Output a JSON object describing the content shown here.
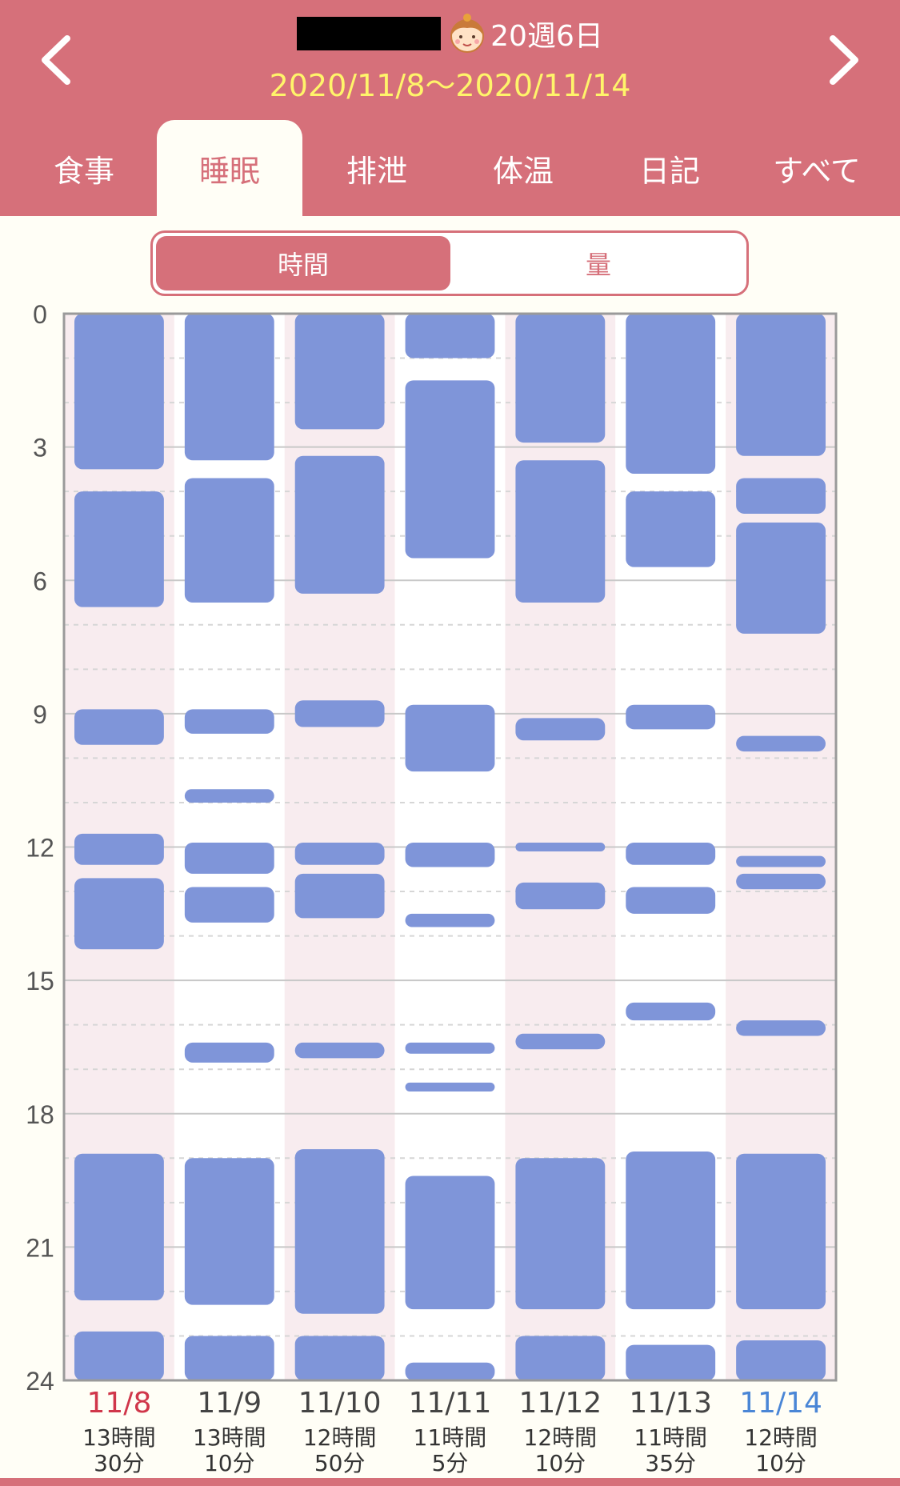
{
  "header": {
    "week_label": "20週6日",
    "date_range": "2020/11/8〜2020/11/14",
    "prev_icon": "chevron-left-icon",
    "next_icon": "chevron-right-icon",
    "avatar_icon": "baby-face-icon",
    "bg_color": "#d6707a"
  },
  "tabs": [
    {
      "label": "食事",
      "active": false
    },
    {
      "label": "睡眠",
      "active": true
    },
    {
      "label": "排泄",
      "active": false
    },
    {
      "label": "体温",
      "active": false
    },
    {
      "label": "日記",
      "active": false
    },
    {
      "label": "すべて",
      "active": false
    }
  ],
  "segment": {
    "time_label": "時間",
    "amount_label": "量",
    "selected": "time"
  },
  "chart_data": {
    "type": "timeline",
    "y_ticks": [
      "0",
      "3",
      "6",
      "9",
      "12",
      "15",
      "18",
      "21",
      "24"
    ],
    "ylim": [
      0,
      24
    ],
    "bar_color": "#7f95d9",
    "days": [
      {
        "date": "11/8",
        "color": "#d0364a",
        "total_line1": "13時間",
        "total_line2": "30分",
        "sleeps": [
          [
            0,
            3.5
          ],
          [
            4,
            6.6
          ],
          [
            8.9,
            9.7
          ],
          [
            11.7,
            12.4
          ],
          [
            12.7,
            14.3
          ],
          [
            18.9,
            22.2
          ],
          [
            22.9,
            24
          ]
        ]
      },
      {
        "date": "11/9",
        "color": "#444444",
        "total_line1": "13時間",
        "total_line2": "10分",
        "sleeps": [
          [
            0,
            3.3
          ],
          [
            3.7,
            6.5
          ],
          [
            8.9,
            9.45
          ],
          [
            10.7,
            11
          ],
          [
            11.9,
            12.6
          ],
          [
            12.9,
            13.7
          ],
          [
            16.4,
            16.85
          ],
          [
            19,
            22.3
          ],
          [
            23,
            24
          ]
        ]
      },
      {
        "date": "11/10",
        "color": "#444444",
        "total_line1": "12時間",
        "total_line2": "50分",
        "sleeps": [
          [
            0,
            2.6
          ],
          [
            3.2,
            6.3
          ],
          [
            8.7,
            9.3
          ],
          [
            11.9,
            12.4
          ],
          [
            12.6,
            13.6
          ],
          [
            16.4,
            16.75
          ],
          [
            18.8,
            22.5
          ],
          [
            23,
            24
          ]
        ]
      },
      {
        "date": "11/11",
        "color": "#444444",
        "total_line1": "11時間",
        "total_line2": "5分",
        "sleeps": [
          [
            0,
            1
          ],
          [
            1.5,
            5.5
          ],
          [
            8.8,
            10.3
          ],
          [
            11.9,
            12.45
          ],
          [
            13.5,
            13.8
          ],
          [
            16.4,
            16.65
          ],
          [
            17.3,
            17.5
          ],
          [
            19.4,
            22.4
          ],
          [
            23.6,
            24
          ]
        ]
      },
      {
        "date": "11/12",
        "color": "#444444",
        "total_line1": "12時間",
        "total_line2": "10分",
        "sleeps": [
          [
            0,
            2.9
          ],
          [
            3.3,
            6.5
          ],
          [
            9.1,
            9.6
          ],
          [
            11.9,
            12.1
          ],
          [
            12.8,
            13.4
          ],
          [
            16.2,
            16.55
          ],
          [
            19,
            22.4
          ],
          [
            23,
            24
          ]
        ]
      },
      {
        "date": "11/13",
        "color": "#444444",
        "total_line1": "11時間",
        "total_line2": "35分",
        "sleeps": [
          [
            0,
            3.6
          ],
          [
            4,
            5.7
          ],
          [
            8.8,
            9.35
          ],
          [
            11.9,
            12.4
          ],
          [
            12.9,
            13.5
          ],
          [
            15.5,
            15.9
          ],
          [
            18.85,
            22.4
          ],
          [
            23.2,
            24
          ]
        ]
      },
      {
        "date": "11/14",
        "color": "#4a86d6",
        "total_line1": "12時間",
        "total_line2": "10分",
        "sleeps": [
          [
            0,
            3.2
          ],
          [
            3.7,
            4.5
          ],
          [
            4.7,
            7.2
          ],
          [
            9.5,
            9.85
          ],
          [
            12.2,
            12.45
          ],
          [
            12.6,
            12.95
          ],
          [
            15.9,
            16.25
          ],
          [
            18.9,
            22.4
          ],
          [
            23.1,
            24
          ]
        ]
      }
    ]
  }
}
